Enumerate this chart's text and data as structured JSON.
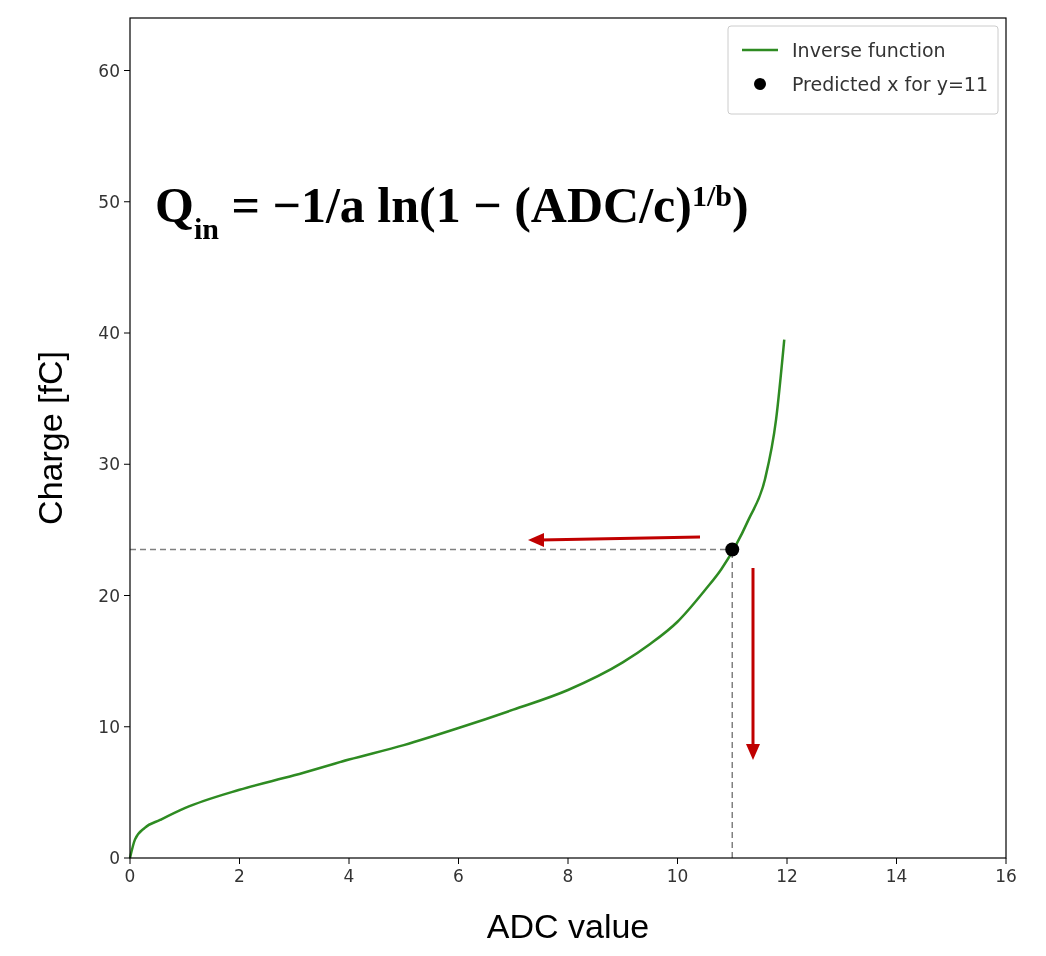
{
  "chart_data": {
    "type": "line",
    "xlabel": "ADC value",
    "ylabel": "Charge [fC]",
    "xlim": [
      0,
      16
    ],
    "ylim": [
      0,
      64
    ],
    "xticks": [
      0,
      2,
      4,
      6,
      8,
      10,
      12,
      14,
      16
    ],
    "yticks": [
      0,
      10,
      20,
      30,
      40,
      50,
      60
    ],
    "grid": false,
    "legend": "top right",
    "annotations": [
      "Q$_{in}$ = −1/a ln(1 − (ADC/c)$^{1/b}$)"
    ],
    "ref_lines": [
      {
        "axis": "x",
        "value": 11,
        "color": "#808080",
        "line_style": "dashed"
      },
      {
        "axis": "y",
        "value": 23.5,
        "color": "#808080",
        "line_style": "dashed"
      }
    ],
    "series": [
      {
        "name": "Inverse function",
        "color": "#2e8b22",
        "marker": "none",
        "x": [
          0,
          0.09,
          0.27,
          0.55,
          1,
          2,
          3,
          4,
          5,
          6,
          7,
          8,
          9,
          9.5,
          10,
          10.5,
          10.8,
          11.05,
          11.3,
          11.6,
          11.8,
          11.95
        ],
        "values": [
          0,
          1.4,
          2.3,
          2.9,
          3.8,
          5.2,
          6.3,
          7.5,
          8.6,
          9.9,
          11.3,
          12.8,
          14.9,
          16.3,
          18,
          20.4,
          22,
          23.7,
          25.8,
          28.9,
          33.4,
          39.5
        ]
      },
      {
        "name": "Predicted x for y=11",
        "type": "scatter",
        "color": "#000000",
        "marker": "circle",
        "x": [
          11
        ],
        "values": [
          23.5
        ]
      }
    ]
  }
}
